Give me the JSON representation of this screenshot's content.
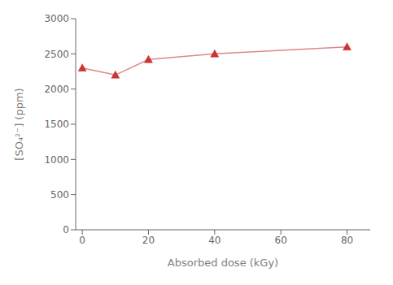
{
  "chart_data": {
    "type": "line",
    "x": [
      0,
      10,
      20,
      40,
      80
    ],
    "values": [
      2300,
      2200,
      2420,
      2500,
      2600
    ],
    "xlabel": "Absorbed dose (kGy)",
    "ylabel": "[SO₄²⁻] (ppm)",
    "xlim": [
      -2,
      87
    ],
    "ylim": [
      0,
      3000
    ],
    "xticks": [
      0,
      20,
      40,
      60,
      80
    ],
    "yticks": [
      0,
      500,
      1000,
      1500,
      2000,
      2500,
      3000
    ],
    "color": "#dd8888",
    "colors": [
      "#cc3333",
      "#cc3333",
      "#cc3333",
      "#cc3333",
      "#cc3333"
    ],
    "marker": "triangle",
    "grid": false
  }
}
